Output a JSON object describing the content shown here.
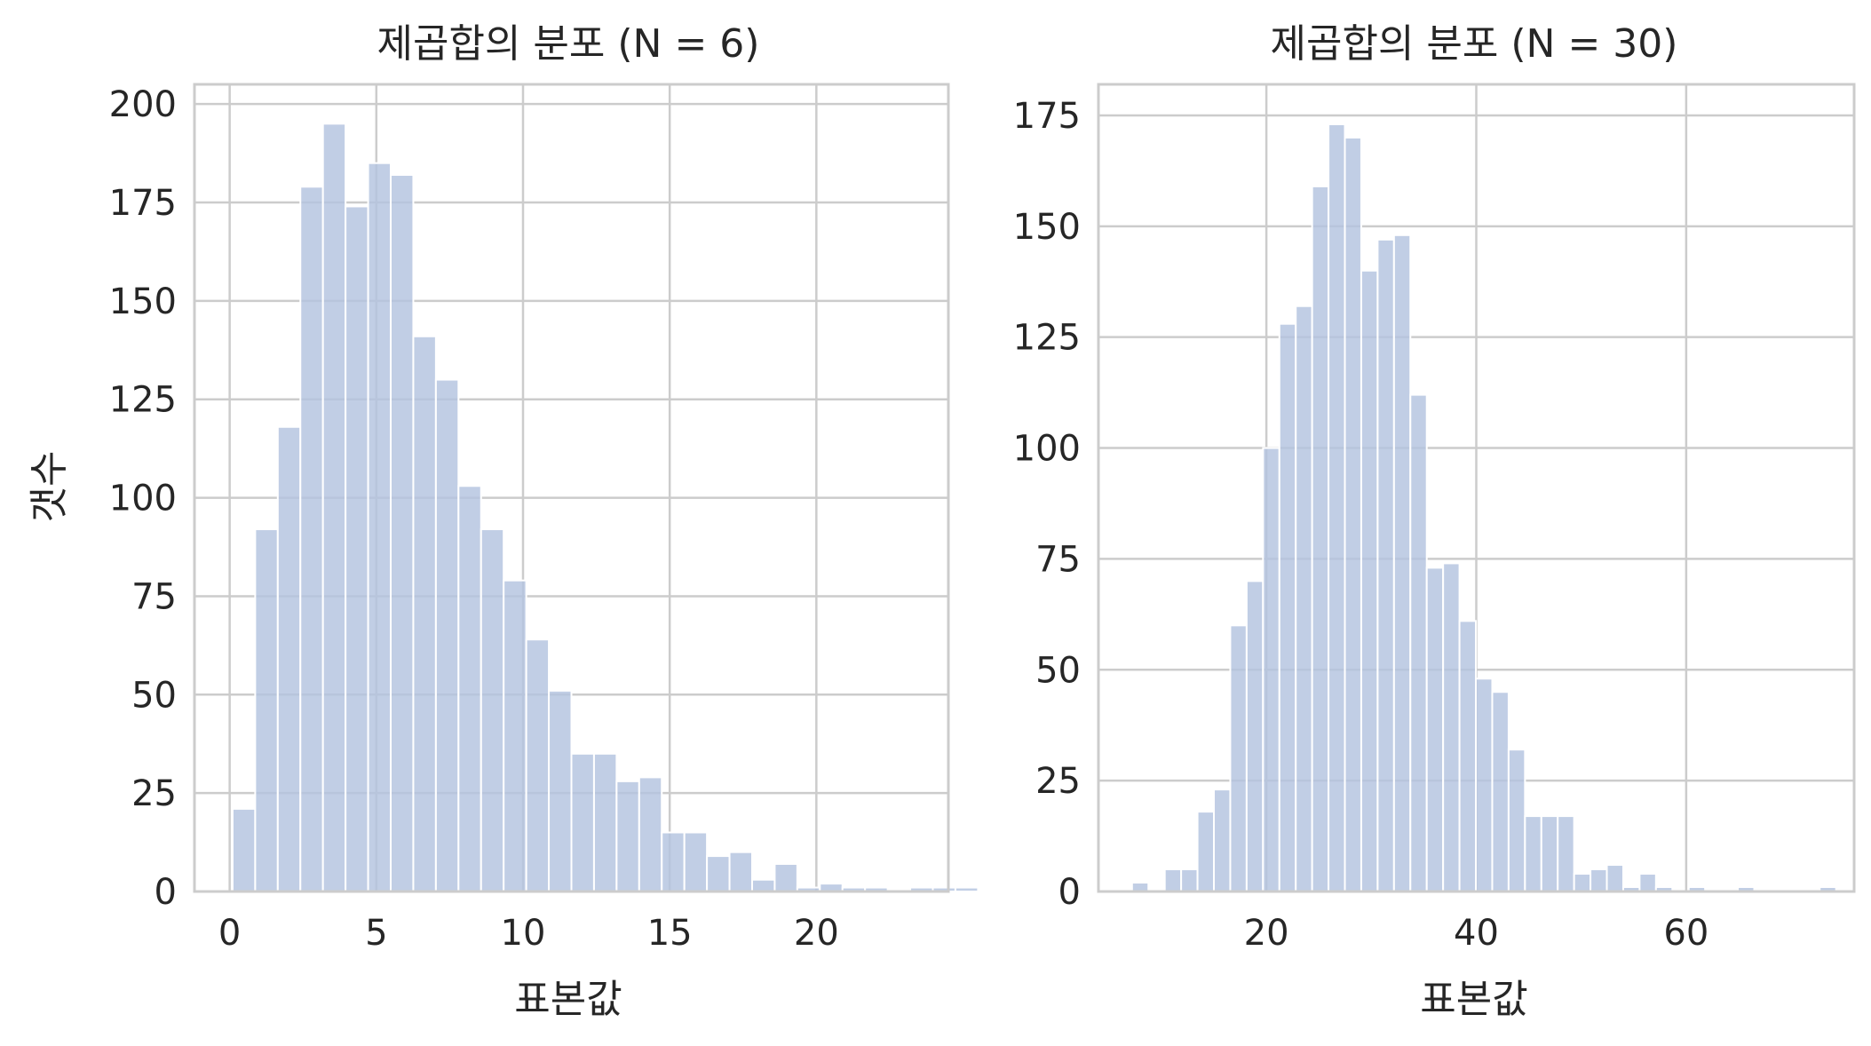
{
  "figure_title": "",
  "chart_data": [
    {
      "type": "bar",
      "title": "제곱합의 분포 (N = 6)",
      "xlabel": "표본값",
      "ylabel": "갯수",
      "xlim": [
        -1.2,
        24.5
      ],
      "ylim": [
        0,
        205
      ],
      "xticks": [
        0,
        5,
        10,
        15,
        20
      ],
      "yticks": [
        0,
        25,
        50,
        75,
        100,
        125,
        150,
        175,
        200
      ],
      "grid": true,
      "bar_color": "#b3c3df",
      "bin_edges_start": 0.1,
      "bin_width": 0.77,
      "values": [
        21,
        92,
        118,
        179,
        195,
        174,
        185,
        182,
        141,
        130,
        103,
        92,
        79,
        64,
        51,
        35,
        35,
        28,
        29,
        15,
        15,
        9,
        10,
        3,
        7,
        1,
        2,
        1,
        1,
        0,
        1,
        1,
        1
      ]
    },
    {
      "type": "bar",
      "title": "제곱합의 분포 (N = 30)",
      "xlabel": "표본값",
      "ylabel": "",
      "xlim": [
        4,
        76
      ],
      "ylim": [
        0,
        182
      ],
      "xticks": [
        20,
        40,
        60
      ],
      "yticks": [
        0,
        25,
        50,
        75,
        100,
        125,
        150,
        175
      ],
      "grid": true,
      "bar_color": "#b3c3df",
      "bin_edges_start": 7.2,
      "bin_width": 1.56,
      "values": [
        2,
        0,
        5,
        5,
        18,
        23,
        60,
        70,
        100,
        128,
        132,
        159,
        173,
        170,
        140,
        147,
        148,
        112,
        73,
        74,
        61,
        48,
        45,
        32,
        17,
        17,
        17,
        4,
        5,
        6,
        1,
        4,
        1,
        0,
        1,
        0,
        0,
        1,
        0,
        0,
        0,
        0,
        1
      ]
    }
  ]
}
